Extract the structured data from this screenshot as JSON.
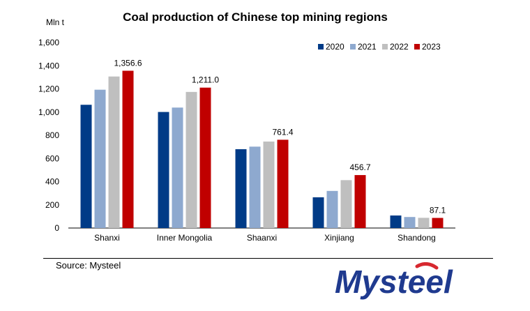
{
  "chart_data": {
    "type": "bar",
    "title": "Coal production of Chinese top mining regions",
    "ylabel": "Mln t",
    "ylim": [
      0,
      1600
    ],
    "yticks": [
      "0",
      "200",
      "400",
      "600",
      "800",
      "1,000",
      "1,200",
      "1,400",
      "1,600"
    ],
    "categories": [
      "Shanxi",
      "Inner Mongolia",
      "Shaanxi",
      "Xinjiang",
      "Shandong"
    ],
    "series": [
      {
        "name": "2020",
        "color": "#003b87",
        "values": [
          1063,
          1001,
          680,
          265,
          108
        ]
      },
      {
        "name": "2021",
        "color": "#8ea9cf",
        "values": [
          1193,
          1039,
          702,
          320,
          95
        ]
      },
      {
        "name": "2022",
        "color": "#bfbfbf",
        "values": [
          1307,
          1174,
          746,
          413,
          88
        ]
      },
      {
        "name": "2023",
        "color": "#c00000",
        "values": [
          1356.6,
          1211.0,
          761.4,
          456.7,
          87.1
        ]
      }
    ],
    "data_labels": [
      "1,356.6",
      "1,211.0",
      "761.4",
      "456.7",
      "87.1"
    ],
    "legend_position": "top-right",
    "grid": false
  },
  "footer": {
    "source": "Source: Mysteel",
    "logo_text": "Mysteel",
    "logo_color": "#1f3a8f",
    "logo_accent": "#d7282f"
  }
}
